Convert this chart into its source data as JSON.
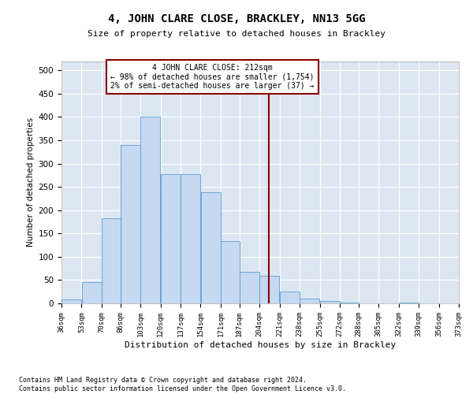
{
  "title": "4, JOHN CLARE CLOSE, BRACKLEY, NN13 5GG",
  "subtitle": "Size of property relative to detached houses in Brackley",
  "xlabel": "Distribution of detached houses by size in Brackley",
  "ylabel": "Number of detached properties",
  "bar_color": "#c5d9f1",
  "bar_edge_color": "#5b9bd5",
  "background_color": "#dce6f1",
  "grid_color": "#ffffff",
  "vline_color": "#8b0000",
  "vline_x": 212,
  "annotation_text": "4 JOHN CLARE CLOSE: 212sqm\n← 98% of detached houses are smaller (1,754)\n2% of semi-detached houses are larger (37) →",
  "annotation_box_color": "#ffffff",
  "annotation_box_edge": "#8b0000",
  "bin_edges": [
    36,
    53,
    70,
    86,
    103,
    120,
    137,
    154,
    171,
    187,
    204,
    221,
    238,
    255,
    272,
    288,
    305,
    322,
    339,
    356,
    373
  ],
  "bar_heights": [
    8,
    46,
    182,
    340,
    400,
    277,
    277,
    238,
    134,
    67,
    60,
    25,
    10,
    5,
    2,
    0,
    0,
    2,
    0,
    0
  ],
  "ylim": [
    0,
    520
  ],
  "yticks": [
    0,
    50,
    100,
    150,
    200,
    250,
    300,
    350,
    400,
    450,
    500
  ],
  "footnote": "Contains HM Land Registry data © Crown copyright and database right 2024.\nContains public sector information licensed under the Open Government Licence v3.0.",
  "tick_labels": [
    "36sqm",
    "53sqm",
    "70sqm",
    "86sqm",
    "103sqm",
    "120sqm",
    "137sqm",
    "154sqm",
    "171sqm",
    "187sqm",
    "204sqm",
    "221sqm",
    "238sqm",
    "255sqm",
    "272sqm",
    "288sqm",
    "305sqm",
    "322sqm",
    "339sqm",
    "356sqm",
    "373sqm"
  ]
}
